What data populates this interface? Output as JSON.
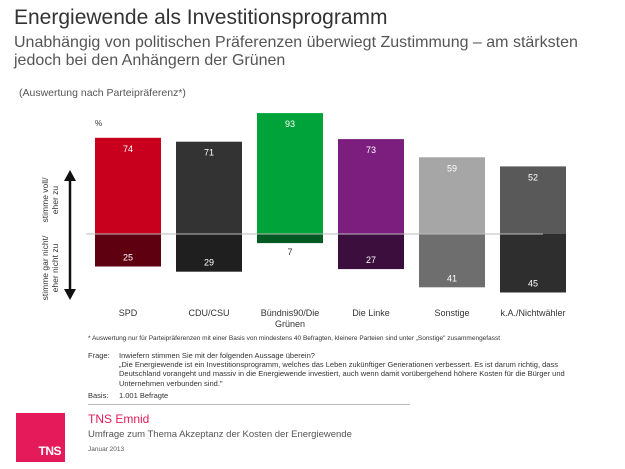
{
  "header": {
    "title": "Energiewende als Investitionsprogramm",
    "subtitle": "Unabhängig von politischen Präferenzen überwiegt Zustimmung – am stärksten jedoch bei den Anhängern der Grünen",
    "note": "(Auswertung nach Parteipräferenz*)"
  },
  "chart_data": {
    "type": "bar",
    "unit_label": "%",
    "categories": [
      "SPD",
      "CDU/CSU",
      "Bündnis90/Die Grünen",
      "Die Linke",
      "Sonstige",
      "k.A./Nichtwähler"
    ],
    "series": [
      {
        "name": "stimme voll/ eher zu",
        "values": [
          74,
          71,
          93,
          73,
          59,
          52
        ]
      },
      {
        "name": "stimme gar nicht/ eher nicht zu",
        "values": [
          25,
          29,
          7,
          27,
          41,
          45
        ]
      }
    ],
    "colors": {
      "positive": [
        "#c8001e",
        "#333333",
        "#00a33a",
        "#7b1e7e",
        "#a6a6a6",
        "#595959"
      ],
      "negative": [
        "#5e0010",
        "#1f1f1f",
        "#005a22",
        "#3b0e3d",
        "#6e6e6e",
        "#2e2e2e"
      ]
    }
  },
  "footnote": "* Auswertung nur für Parteipräferenzen mit einer Basis von mindestens 40 Befragten, kleinere Parteien sind unter „Sonstige\" zusammengefasst",
  "question": {
    "label": "Frage:",
    "lines": [
      "Inwiefern stimmen Sie mit der folgenden Aussage überein?",
      "„Die Energiewende ist ein Investitionsprogramm, welches das Leben zukünftiger Generationen verbessert. Es ist darum richtig, dass",
      "Deutschland vorangeht und massiv in die Energiewende investiert, auch wenn damit vorübergehend höhere Kosten für die Bürger und",
      "Unternehmen verbunden sind.\""
    ]
  },
  "basis": {
    "label": "Basis:",
    "value": "1.001 Befragte"
  },
  "footer": {
    "logo_text": "TNS",
    "brand": "TNS Emnid",
    "survey": "Umfrage zum Thema Akzeptanz der Kosten der Energiewende",
    "date": "Januar 2013"
  }
}
